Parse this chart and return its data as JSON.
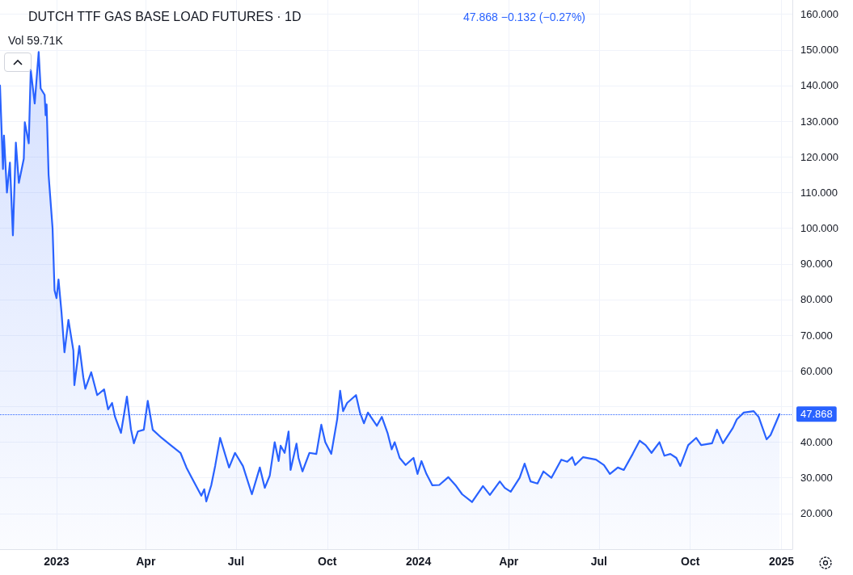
{
  "chart_data": {
    "type": "area",
    "title": "DUTCH TTF GAS BASE LOAD FUTURES · 1D",
    "subtitle": "47.868 −0.132 (−0.27%)",
    "annotations": [
      "Vol 59.71K"
    ],
    "series": [
      {
        "color": "#2962ff",
        "x": [
          "2022-11-05",
          "2022-11-08",
          "2022-11-09",
          "2022-11-12",
          "2022-11-15",
          "2022-11-18",
          "2022-11-21",
          "2022-11-24",
          "2022-11-29",
          "2022-11-30",
          "2022-12-04",
          "2022-12-06",
          "2022-12-10",
          "2022-12-14",
          "2022-12-16",
          "2022-12-20",
          "2022-12-21",
          "2022-12-22",
          "2022-12-24",
          "2022-12-28",
          "2022-12-30",
          "2023-01-01",
          "2023-01-03",
          "2023-01-06",
          "2023-01-09",
          "2023-01-13",
          "2023-01-18",
          "2023-01-19",
          "2023-01-24",
          "2023-01-28",
          "2023-01-30",
          "2023-02-05",
          "2023-02-11",
          "2023-02-18",
          "2023-02-22",
          "2023-02-26",
          "2023-03-01",
          "2023-03-07",
          "2023-03-13",
          "2023-03-17",
          "2023-03-20",
          "2023-03-24",
          "2023-03-30",
          "2023-04-03",
          "2023-04-08",
          "2023-04-17",
          "2023-04-26",
          "2023-05-06",
          "2023-05-12",
          "2023-05-17",
          "2023-05-27",
          "2023-05-30",
          "2023-06-01",
          "2023-06-06",
          "2023-06-10",
          "2023-06-15",
          "2023-06-24",
          "2023-06-30",
          "2023-07-08",
          "2023-07-17",
          "2023-07-25",
          "2023-07-30",
          "2023-08-04",
          "2023-08-09",
          "2023-08-13",
          "2023-08-15",
          "2023-08-19",
          "2023-08-23",
          "2023-08-25",
          "2023-08-31",
          "2023-09-02",
          "2023-09-06",
          "2023-09-13",
          "2023-09-20",
          "2023-09-25",
          "2023-09-29",
          "2023-10-05",
          "2023-10-11",
          "2023-10-14",
          "2023-10-17",
          "2023-10-21",
          "2023-10-30",
          "2023-11-03",
          "2023-11-07",
          "2023-11-11",
          "2023-11-20",
          "2023-11-25",
          "2023-12-01",
          "2023-12-05",
          "2023-12-08",
          "2023-12-13",
          "2023-12-19",
          "2023-12-27",
          "2023-12-31",
          "2024-01-04",
          "2024-01-09",
          "2024-01-15",
          "2024-01-22",
          "2024-01-31",
          "2024-02-08",
          "2024-02-14",
          "2024-02-24",
          "2024-03-06",
          "2024-03-13",
          "2024-03-23",
          "2024-03-28",
          "2024-04-03",
          "2024-04-12",
          "2024-04-17",
          "2024-04-23",
          "2024-04-30",
          "2024-05-06",
          "2024-05-14",
          "2024-05-24",
          "2024-05-30",
          "2024-06-04",
          "2024-06-07",
          "2024-06-15",
          "2024-06-28",
          "2024-07-06",
          "2024-07-12",
          "2024-07-20",
          "2024-07-26",
          "2024-08-04",
          "2024-08-11",
          "2024-08-17",
          "2024-08-23",
          "2024-08-31",
          "2024-09-05",
          "2024-09-11",
          "2024-09-17",
          "2024-09-21",
          "2024-09-29",
          "2024-10-07",
          "2024-10-12",
          "2024-10-23",
          "2024-10-28",
          "2024-11-03",
          "2024-11-13",
          "2024-11-17",
          "2024-11-24",
          "2024-12-04",
          "2024-12-09",
          "2024-12-17",
          "2024-12-21",
          "2024-12-27",
          "2024-12-30"
        ],
        "values": [
          140,
          116.6,
          126,
          110,
          118.4,
          98,
          124,
          112.7,
          119.5,
          129.7,
          123.8,
          144.4,
          135,
          149.4,
          139.2,
          137.4,
          131.7,
          134.7,
          115,
          100,
          82.6,
          80.4,
          85.6,
          76.5,
          65.2,
          74.3,
          65.7,
          56,
          67,
          58.2,
          55,
          59.6,
          53.2,
          54.8,
          49.2,
          51,
          47.1,
          42.6,
          52.8,
          43.7,
          39.7,
          43,
          43.5,
          51.6,
          43.5,
          41.2,
          39.2,
          37,
          32.9,
          30.2,
          25,
          26.8,
          23.4,
          27.9,
          33.4,
          41.2,
          32.9,
          37,
          33.3,
          25.4,
          32.9,
          27.2,
          30.6,
          40,
          34.7,
          39,
          37,
          43,
          32.2,
          39.6,
          35.6,
          31.8,
          37,
          36.7,
          44.9,
          40,
          36.7,
          46.4,
          54.4,
          48.7,
          51,
          53.2,
          48.3,
          45.3,
          48.3,
          44.6,
          47.1,
          42.4,
          38,
          40,
          35.6,
          33.6,
          35.6,
          31.1,
          34.7,
          31.1,
          27.9,
          28,
          30.2,
          27.7,
          25.4,
          23.2,
          27.7,
          25.2,
          29,
          27.2,
          26.1,
          30,
          34,
          29,
          28.4,
          31.8,
          30,
          35.1,
          34.5,
          35.8,
          33.6,
          35.8,
          35.1,
          33.6,
          31.1,
          32.9,
          32.2,
          36.7,
          40.4,
          39.2,
          37,
          40,
          36.2,
          36.7,
          35.6,
          33.3,
          39.2,
          41.2,
          39.2,
          39.7,
          43.5,
          39.7,
          44,
          46.4,
          48.3,
          48.7,
          47.1,
          40.8,
          42,
          45.9,
          47.868
        ]
      }
    ],
    "xlim": [
      "2022-11-05",
      "2025-01-12"
    ],
    "xticks": [
      {
        "value": "2023-01-01",
        "label": "2023"
      },
      {
        "value": "2023-04-01",
        "label": "Apr"
      },
      {
        "value": "2023-07-01",
        "label": "Jul"
      },
      {
        "value": "2023-10-01",
        "label": "Oct"
      },
      {
        "value": "2024-01-01",
        "label": "2024"
      },
      {
        "value": "2024-04-01",
        "label": "Apr"
      },
      {
        "value": "2024-07-01",
        "label": "Jul"
      },
      {
        "value": "2024-10-01",
        "label": "Oct"
      },
      {
        "value": "2025-01-01",
        "label": "2025"
      }
    ],
    "ylim": [
      10,
      164
    ],
    "yticks": [
      {
        "value": 20,
        "label": "20.000"
      },
      {
        "value": 30,
        "label": "30.000"
      },
      {
        "value": 40,
        "label": "40.000"
      },
      {
        "value": 50,
        "label": null
      },
      {
        "value": 60,
        "label": "60.000"
      },
      {
        "value": 70,
        "label": "70.000"
      },
      {
        "value": 80,
        "label": "80.000"
      },
      {
        "value": 90,
        "label": "90.000"
      },
      {
        "value": 100,
        "label": "100.000"
      },
      {
        "value": 110,
        "label": "110.000"
      },
      {
        "value": 120,
        "label": "120.000"
      },
      {
        "value": 130,
        "label": "130.000"
      },
      {
        "value": 140,
        "label": "140.000"
      },
      {
        "value": 150,
        "label": "150.000"
      },
      {
        "value": 160,
        "label": "160.000"
      }
    ],
    "ref_lines": [
      {
        "axis": "y",
        "value": 47.868,
        "label": "47.868",
        "color": "#2962ff",
        "line_style": "dotted"
      }
    ],
    "grid": true,
    "marker": "none",
    "line_style": "solid"
  }
}
